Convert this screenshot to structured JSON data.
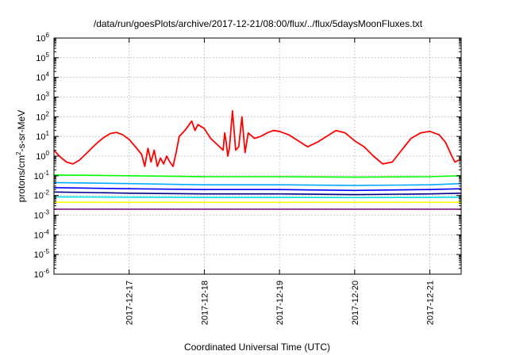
{
  "chart_data": {
    "type": "line",
    "title": "/data/run/goesPlots/archive/2017-12-21/08:00/flux/../flux/5daysMoonFluxes.txt",
    "xlabel": "Coordinated Universal Time (UTC)",
    "ylabel": {
      "prefix": "protons/cm",
      "sup": "2",
      "suffix": "-s-sr-MeV"
    },
    "yscale": "log",
    "ylim": [
      1e-06,
      1000000.0
    ],
    "y_ticks": [
      {
        "base": "10",
        "exp": "-6"
      },
      {
        "base": "10",
        "exp": "-5"
      },
      {
        "base": "10",
        "exp": "-4"
      },
      {
        "base": "10",
        "exp": "-3"
      },
      {
        "base": "10",
        "exp": "-2"
      },
      {
        "base": "10",
        "exp": "-1"
      },
      {
        "base": "10",
        "exp": "0"
      },
      {
        "base": "10",
        "exp": "1"
      },
      {
        "base": "10",
        "exp": "2"
      },
      {
        "base": "10",
        "exp": "3"
      },
      {
        "base": "10",
        "exp": "4"
      },
      {
        "base": "10",
        "exp": "5"
      },
      {
        "base": "10",
        "exp": "6"
      }
    ],
    "xlim": [
      "2017-12-16 00:00",
      "2017-12-21 10:00"
    ],
    "x_ticks": [
      "2017-12-17",
      "2017-12-18",
      "2017-12-19",
      "2017-12-20",
      "2017-12-21"
    ],
    "grid": true,
    "series": [
      {
        "color": "#ff0000",
        "x": [
          "2017-12-16 00:00",
          "2017-12-16 02:00",
          "2017-12-16 04:00",
          "2017-12-16 06:00",
          "2017-12-16 08:00",
          "2017-12-16 10:00",
          "2017-12-16 12:00",
          "2017-12-16 14:00",
          "2017-12-16 16:00",
          "2017-12-16 18:00",
          "2017-12-16 20:00",
          "2017-12-16 22:00",
          "2017-12-17 00:00",
          "2017-12-17 02:00",
          "2017-12-17 04:00",
          "2017-12-17 05:00",
          "2017-12-17 06:00",
          "2017-12-17 07:00",
          "2017-12-17 08:00",
          "2017-12-17 09:00",
          "2017-12-17 10:00",
          "2017-12-17 11:00",
          "2017-12-17 12:00",
          "2017-12-17 13:00",
          "2017-12-17 14:00",
          "2017-12-17 15:00",
          "2017-12-17 16:00",
          "2017-12-17 18:00",
          "2017-12-17 20:00",
          "2017-12-17 21:00",
          "2017-12-17 22:00",
          "2017-12-18 00:00",
          "2017-12-18 02:00",
          "2017-12-18 04:00",
          "2017-12-18 06:00",
          "2017-12-18 06:30",
          "2017-12-18 07:00",
          "2017-12-18 07:30",
          "2017-12-18 08:00",
          "2017-12-18 09:00",
          "2017-12-18 10:00",
          "2017-12-18 11:00",
          "2017-12-18 12:00",
          "2017-12-18 13:00",
          "2017-12-18 14:00",
          "2017-12-18 16:00",
          "2017-12-18 18:00",
          "2017-12-18 20:00",
          "2017-12-18 22:00",
          "2017-12-19 00:00",
          "2017-12-19 03:00",
          "2017-12-19 06:00",
          "2017-12-19 09:00",
          "2017-12-19 12:00",
          "2017-12-19 15:00",
          "2017-12-19 18:00",
          "2017-12-19 21:00",
          "2017-12-20 00:00",
          "2017-12-20 03:00",
          "2017-12-20 06:00",
          "2017-12-20 09:00",
          "2017-12-20 12:00",
          "2017-12-20 15:00",
          "2017-12-20 18:00",
          "2017-12-20 21:00",
          "2017-12-21 00:00",
          "2017-12-21 03:00",
          "2017-12-21 05:00",
          "2017-12-21 07:00",
          "2017-12-21 08:00",
          "2017-12-21 09:00",
          "2017-12-21 10:00"
        ],
        "y": [
          2.0,
          0.9,
          0.5,
          0.4,
          0.6,
          1.2,
          2.5,
          5,
          9,
          14,
          16,
          12,
          7,
          3,
          1.2,
          0.3,
          2.5,
          0.5,
          2,
          0.3,
          0.8,
          0.4,
          1.0,
          0.5,
          0.3,
          1.5,
          10,
          22,
          60,
          20,
          40,
          25,
          8,
          4,
          2,
          15,
          5,
          1,
          2.5,
          200,
          2,
          3,
          100,
          1.5,
          15,
          8,
          10,
          15,
          20,
          18,
          12,
          6,
          3,
          5,
          10,
          20,
          15,
          6,
          3,
          1,
          0.4,
          0.5,
          2,
          8,
          15,
          18,
          12,
          5,
          1,
          0.5,
          0.6,
          0.7
        ]
      },
      {
        "color": "#00ff00",
        "x": [
          "2017-12-16 00:00",
          "2017-12-17 00:00",
          "2017-12-18 00:00",
          "2017-12-19 00:00",
          "2017-12-20 00:00",
          "2017-12-21 00:00",
          "2017-12-21 10:00"
        ],
        "y": [
          0.11,
          0.1,
          0.09,
          0.09,
          0.085,
          0.09,
          0.1
        ]
      },
      {
        "color": "#00aaff",
        "x": [
          "2017-12-16 00:00",
          "2017-12-17 00:00",
          "2017-12-18 00:00",
          "2017-12-19 00:00",
          "2017-12-20 00:00",
          "2017-12-21 00:00",
          "2017-12-21 10:00"
        ],
        "y": [
          0.045,
          0.04,
          0.035,
          0.035,
          0.032,
          0.035,
          0.04
        ]
      },
      {
        "color": "#0000ff",
        "x": [
          "2017-12-16 00:00",
          "2017-12-17 00:00",
          "2017-12-18 00:00",
          "2017-12-19 00:00",
          "2017-12-20 00:00",
          "2017-12-21 00:00",
          "2017-12-21 10:00"
        ],
        "y": [
          0.025,
          0.022,
          0.02,
          0.02,
          0.018,
          0.02,
          0.022
        ]
      },
      {
        "color": "#00008b",
        "x": [
          "2017-12-16 00:00",
          "2017-12-17 00:00",
          "2017-12-18 00:00",
          "2017-12-19 00:00",
          "2017-12-20 00:00",
          "2017-12-21 00:00",
          "2017-12-21 10:00"
        ],
        "y": [
          0.015,
          0.013,
          0.012,
          0.012,
          0.011,
          0.012,
          0.013
        ]
      },
      {
        "color": "#00e0e0",
        "x": [
          "2017-12-16 00:00",
          "2017-12-17 00:00",
          "2017-12-18 00:00",
          "2017-12-19 00:00",
          "2017-12-20 00:00",
          "2017-12-21 00:00",
          "2017-12-21 10:00"
        ],
        "y": [
          0.0085,
          0.0082,
          0.008,
          0.008,
          0.0078,
          0.008,
          0.0082
        ]
      },
      {
        "color": "#ffff00",
        "x": [
          "2017-12-16 00:00",
          "2017-12-21 10:00"
        ],
        "y": [
          0.0045,
          0.0045
        ]
      },
      {
        "color": "#800080",
        "x": [
          "2017-12-16 00:00",
          "2017-12-21 10:00"
        ],
        "y": [
          0.002,
          0.002
        ]
      }
    ]
  }
}
